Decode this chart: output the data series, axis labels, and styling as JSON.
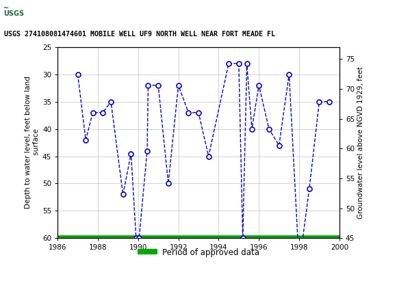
{
  "title": "USGS 274108081474601 MOBILE WELL UF9 NORTH WELL NEAR FORT MEADE FL",
  "ylabel_left": "Depth to water level, feet below land\n surface",
  "ylabel_right": "Groundwater level above NGVD 1929, feet",
  "ylim_left": [
    60,
    25
  ],
  "ylim_right": [
    45,
    77
  ],
  "xlim": [
    1986,
    2000
  ],
  "xticks": [
    1986,
    1988,
    1990,
    1992,
    1994,
    1996,
    1998,
    2000
  ],
  "yticks_left": [
    25,
    30,
    35,
    40,
    45,
    50,
    55,
    60
  ],
  "yticks_right": [
    45,
    50,
    55,
    60,
    65,
    70,
    75
  ],
  "data_x": [
    1987.0,
    1987.4,
    1987.75,
    1988.25,
    1988.65,
    1989.25,
    1989.65,
    1989.9,
    1990.05,
    1990.45,
    1990.5,
    1991.0,
    1991.5,
    1992.0,
    1992.5,
    1993.0,
    1993.5,
    1994.5,
    1995.0,
    1995.2,
    1995.4,
    1995.65,
    1996.0,
    1996.5,
    1997.0,
    1997.5,
    1998.0,
    1998.5,
    1999.0,
    1999.5
  ],
  "data_y": [
    30,
    42,
    37,
    37,
    35,
    52,
    44.5,
    60,
    60,
    44,
    32,
    32,
    50,
    32,
    37,
    37,
    45,
    28,
    28,
    60,
    28,
    40,
    32,
    40,
    43,
    30,
    65,
    51,
    35,
    35
  ],
  "line_color": "#0000cc",
  "marker_color": "#0000cc",
  "bg_color": "#ffffff",
  "grid_color": "#c0c0c0",
  "approved_bar_y": 60,
  "approved_bar_color": "#00aa00",
  "header_color": "#1a6b3c",
  "header_text_color": "#ffffff",
  "legend_label": "Period of approved data",
  "usgs_logo_text": "USGS"
}
